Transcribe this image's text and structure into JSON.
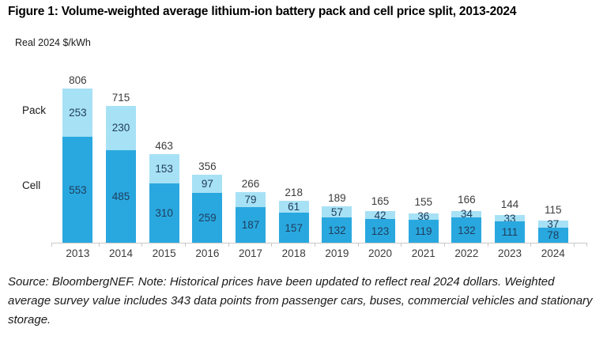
{
  "title": "Figure 1: Volume-weighted average lithium-ion battery pack and cell price split, 2013-2024",
  "axis_label": "Real 2024 $/kWh",
  "series_labels": {
    "pack": "Pack",
    "cell": "Cell"
  },
  "footer": "Source: BloombergNEF. Note: Historical prices have been updated to reflect real 2024 dollars. Weighted average survey value includes 343 data points from passenger cars, buses, commercial vehicles and stationary storage.",
  "colors": {
    "pack": "#a7e1f5",
    "cell": "#29a8df",
    "value_label": "#1f3c5c",
    "total_label": "#3c3c3c",
    "axis": "#c8c8c8"
  },
  "chart_data": {
    "type": "bar",
    "stacked": true,
    "title": "Figure 1: Volume-weighted average lithium-ion battery pack and cell price split, 2013-2024",
    "ylabel": "Real 2024 $/kWh",
    "xlabel": "",
    "categories": [
      "2013",
      "2014",
      "2015",
      "2016",
      "2017",
      "2018",
      "2019",
      "2020",
      "2021",
      "2022",
      "2023",
      "2024"
    ],
    "series": [
      {
        "name": "Cell",
        "values": [
          553,
          485,
          310,
          259,
          187,
          157,
          132,
          123,
          119,
          132,
          111,
          78
        ]
      },
      {
        "name": "Pack",
        "values": [
          253,
          230,
          153,
          97,
          79,
          61,
          57,
          42,
          36,
          34,
          33,
          37
        ]
      }
    ],
    "stack_order_bottom_to_top": [
      "Cell",
      "Pack"
    ],
    "totals": [
      806,
      715,
      463,
      356,
      266,
      218,
      189,
      165,
      155,
      166,
      144,
      115
    ],
    "ylim": [
      0,
      830
    ],
    "grid": false,
    "legend_position": "left-inline",
    "data_labels": "inside-segments-and-totals-above"
  }
}
